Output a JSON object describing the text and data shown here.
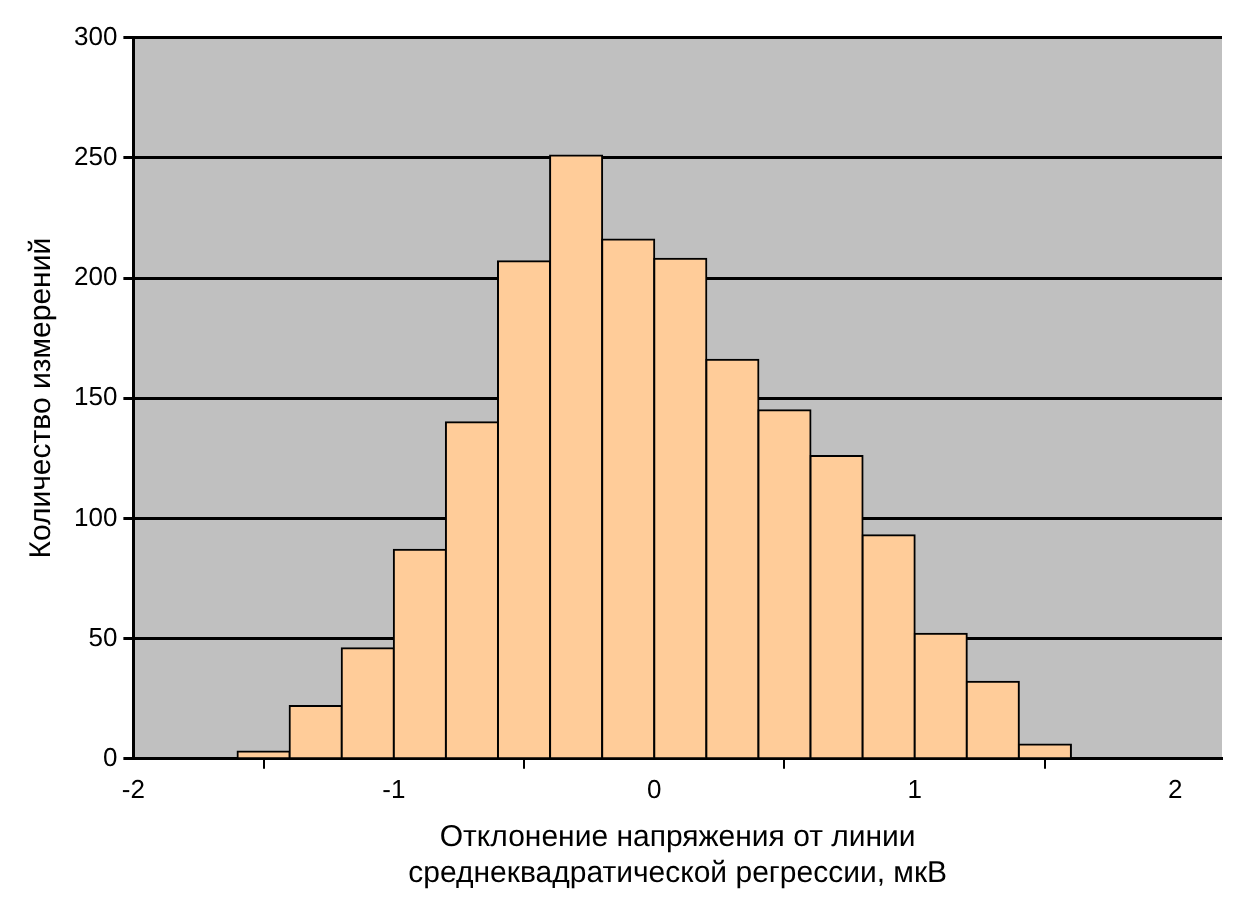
{
  "chart_data": {
    "type": "histogram",
    "xlabel": "Отклонение напряжения от линии среднеквадратической регрессии, мкВ",
    "ylabel": "Количество измерений",
    "bins": [
      -1.6,
      -1.4,
      -1.2,
      -1.0,
      -0.8,
      -0.6,
      -0.4,
      -0.2,
      0,
      0.2,
      0.4,
      0.6,
      0.8,
      1.0,
      1.2,
      1.4,
      1.6
    ],
    "values": [
      3,
      22,
      46,
      87,
      140,
      207,
      251,
      216,
      208,
      166,
      145,
      126,
      93,
      52,
      32,
      6
    ],
    "color": "#ffcc99",
    "xlim": [
      -2,
      2.18
    ],
    "xticks": [
      -2,
      -1,
      0,
      1,
      2
    ],
    "ylim": [
      0,
      300
    ],
    "yticks": [
      0,
      50,
      100,
      150,
      200,
      250,
      300
    ],
    "grid": "y",
    "legend": false
  }
}
